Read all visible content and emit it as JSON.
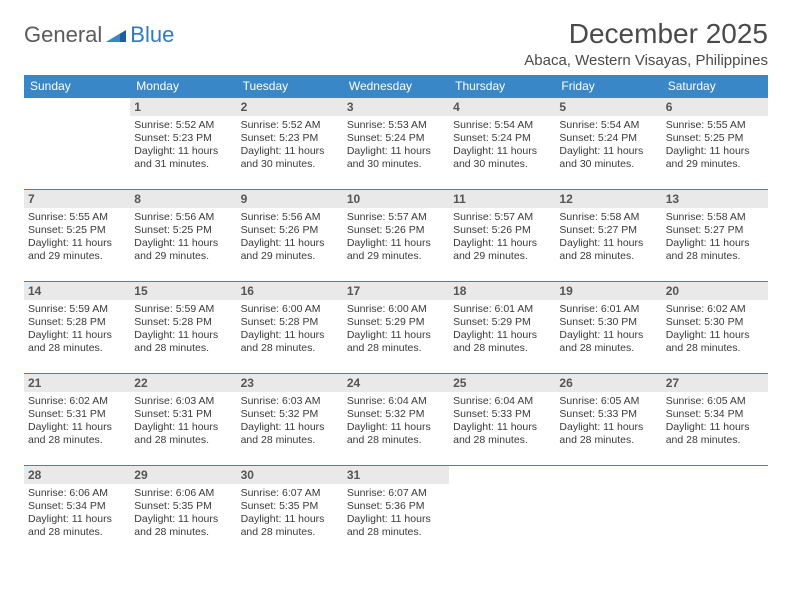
{
  "brand": {
    "part1": "General",
    "part2": "Blue"
  },
  "title": "December 2025",
  "location": "Abaca, Western Visayas, Philippines",
  "colors": {
    "header_bg": "#3a87c7",
    "header_text": "#ffffff",
    "daynum_bg": "#e9e9e9",
    "daynum_text": "#555555",
    "body_text": "#3a3a3a",
    "logo_gray": "#5b5b5b",
    "logo_blue": "#2f7ac0",
    "rule": "#3a87c7",
    "page_bg": "#ffffff"
  },
  "typography": {
    "title_fontsize": 28,
    "location_fontsize": 15,
    "weekday_fontsize": 12,
    "daynum_fontsize": 12,
    "body_fontsize": 10.5
  },
  "calendar": {
    "type": "table",
    "rows": 5,
    "cols": 7,
    "start_weekday_index": 1,
    "weekdays": [
      "Sunday",
      "Monday",
      "Tuesday",
      "Wednesday",
      "Thursday",
      "Friday",
      "Saturday"
    ],
    "days": [
      {
        "n": 1,
        "sunrise": "5:52 AM",
        "sunset": "5:23 PM",
        "daylight": "11 hours and 31 minutes."
      },
      {
        "n": 2,
        "sunrise": "5:52 AM",
        "sunset": "5:23 PM",
        "daylight": "11 hours and 30 minutes."
      },
      {
        "n": 3,
        "sunrise": "5:53 AM",
        "sunset": "5:24 PM",
        "daylight": "11 hours and 30 minutes."
      },
      {
        "n": 4,
        "sunrise": "5:54 AM",
        "sunset": "5:24 PM",
        "daylight": "11 hours and 30 minutes."
      },
      {
        "n": 5,
        "sunrise": "5:54 AM",
        "sunset": "5:24 PM",
        "daylight": "11 hours and 30 minutes."
      },
      {
        "n": 6,
        "sunrise": "5:55 AM",
        "sunset": "5:25 PM",
        "daylight": "11 hours and 29 minutes."
      },
      {
        "n": 7,
        "sunrise": "5:55 AM",
        "sunset": "5:25 PM",
        "daylight": "11 hours and 29 minutes."
      },
      {
        "n": 8,
        "sunrise": "5:56 AM",
        "sunset": "5:25 PM",
        "daylight": "11 hours and 29 minutes."
      },
      {
        "n": 9,
        "sunrise": "5:56 AM",
        "sunset": "5:26 PM",
        "daylight": "11 hours and 29 minutes."
      },
      {
        "n": 10,
        "sunrise": "5:57 AM",
        "sunset": "5:26 PM",
        "daylight": "11 hours and 29 minutes."
      },
      {
        "n": 11,
        "sunrise": "5:57 AM",
        "sunset": "5:26 PM",
        "daylight": "11 hours and 29 minutes."
      },
      {
        "n": 12,
        "sunrise": "5:58 AM",
        "sunset": "5:27 PM",
        "daylight": "11 hours and 28 minutes."
      },
      {
        "n": 13,
        "sunrise": "5:58 AM",
        "sunset": "5:27 PM",
        "daylight": "11 hours and 28 minutes."
      },
      {
        "n": 14,
        "sunrise": "5:59 AM",
        "sunset": "5:28 PM",
        "daylight": "11 hours and 28 minutes."
      },
      {
        "n": 15,
        "sunrise": "5:59 AM",
        "sunset": "5:28 PM",
        "daylight": "11 hours and 28 minutes."
      },
      {
        "n": 16,
        "sunrise": "6:00 AM",
        "sunset": "5:28 PM",
        "daylight": "11 hours and 28 minutes."
      },
      {
        "n": 17,
        "sunrise": "6:00 AM",
        "sunset": "5:29 PM",
        "daylight": "11 hours and 28 minutes."
      },
      {
        "n": 18,
        "sunrise": "6:01 AM",
        "sunset": "5:29 PM",
        "daylight": "11 hours and 28 minutes."
      },
      {
        "n": 19,
        "sunrise": "6:01 AM",
        "sunset": "5:30 PM",
        "daylight": "11 hours and 28 minutes."
      },
      {
        "n": 20,
        "sunrise": "6:02 AM",
        "sunset": "5:30 PM",
        "daylight": "11 hours and 28 minutes."
      },
      {
        "n": 21,
        "sunrise": "6:02 AM",
        "sunset": "5:31 PM",
        "daylight": "11 hours and 28 minutes."
      },
      {
        "n": 22,
        "sunrise": "6:03 AM",
        "sunset": "5:31 PM",
        "daylight": "11 hours and 28 minutes."
      },
      {
        "n": 23,
        "sunrise": "6:03 AM",
        "sunset": "5:32 PM",
        "daylight": "11 hours and 28 minutes."
      },
      {
        "n": 24,
        "sunrise": "6:04 AM",
        "sunset": "5:32 PM",
        "daylight": "11 hours and 28 minutes."
      },
      {
        "n": 25,
        "sunrise": "6:04 AM",
        "sunset": "5:33 PM",
        "daylight": "11 hours and 28 minutes."
      },
      {
        "n": 26,
        "sunrise": "6:05 AM",
        "sunset": "5:33 PM",
        "daylight": "11 hours and 28 minutes."
      },
      {
        "n": 27,
        "sunrise": "6:05 AM",
        "sunset": "5:34 PM",
        "daylight": "11 hours and 28 minutes."
      },
      {
        "n": 28,
        "sunrise": "6:06 AM",
        "sunset": "5:34 PM",
        "daylight": "11 hours and 28 minutes."
      },
      {
        "n": 29,
        "sunrise": "6:06 AM",
        "sunset": "5:35 PM",
        "daylight": "11 hours and 28 minutes."
      },
      {
        "n": 30,
        "sunrise": "6:07 AM",
        "sunset": "5:35 PM",
        "daylight": "11 hours and 28 minutes."
      },
      {
        "n": 31,
        "sunrise": "6:07 AM",
        "sunset": "5:36 PM",
        "daylight": "11 hours and 28 minutes."
      }
    ]
  },
  "labels": {
    "sunrise": "Sunrise:",
    "sunset": "Sunset:",
    "daylight": "Daylight:"
  }
}
